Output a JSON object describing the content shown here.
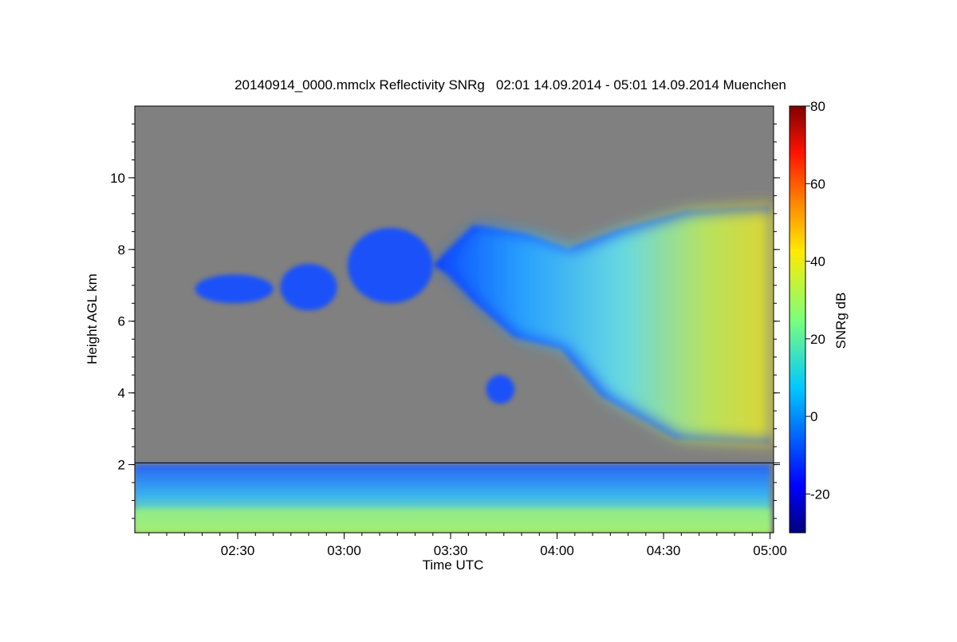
{
  "chart_data": {
    "type": "heatmap",
    "title": "20140914_0000.mmclx Reflectivity SNRg   02:01 14.09.2014 - 05:01 14.09.2014 Muenchen",
    "xlabel": "Time UTC",
    "ylabel": "Height AGL km",
    "x_range": [
      "02:01",
      "05:01"
    ],
    "x_ticks": [
      "02:30",
      "03:00",
      "03:30",
      "04:00",
      "04:30",
      "05:00"
    ],
    "ylim": [
      0.1,
      12.0
    ],
    "y_ticks": [
      2,
      4,
      6,
      8,
      10
    ],
    "colorbar": {
      "label": "SNRg dB",
      "range": [
        -30,
        80
      ],
      "ticks": [
        -20,
        0,
        20,
        40,
        60,
        80
      ],
      "colormap": "jet"
    },
    "background_color": "#808080",
    "reference_line_height_km": 2.05,
    "features": [
      {
        "type": "boundary-layer",
        "time_start": "02:01",
        "time_end": "05:00",
        "height_min_km": 0.1,
        "height_max_km": 2.0,
        "snr_db_max": 35
      },
      {
        "type": "cloud",
        "time_start": "03:25",
        "time_end": "05:00",
        "height_min_km": 2.6,
        "height_max_km": 9.2,
        "snr_db_max": 40
      },
      {
        "type": "cloud",
        "time_start": "02:18",
        "time_end": "02:40",
        "height_min_km": 6.5,
        "height_max_km": 7.3,
        "snr_db_max": 0
      },
      {
        "type": "cloud",
        "time_start": "02:42",
        "time_end": "02:58",
        "height_min_km": 6.3,
        "height_max_km": 7.6,
        "snr_db_max": 0
      },
      {
        "type": "cloud",
        "time_start": "03:01",
        "time_end": "03:25",
        "height_min_km": 6.5,
        "height_max_km": 8.6,
        "snr_db_max": -5
      },
      {
        "type": "cloud",
        "time_start": "03:40",
        "time_end": "03:48",
        "height_min_km": 3.7,
        "height_max_km": 4.5,
        "snr_db_max": -5
      }
    ]
  }
}
